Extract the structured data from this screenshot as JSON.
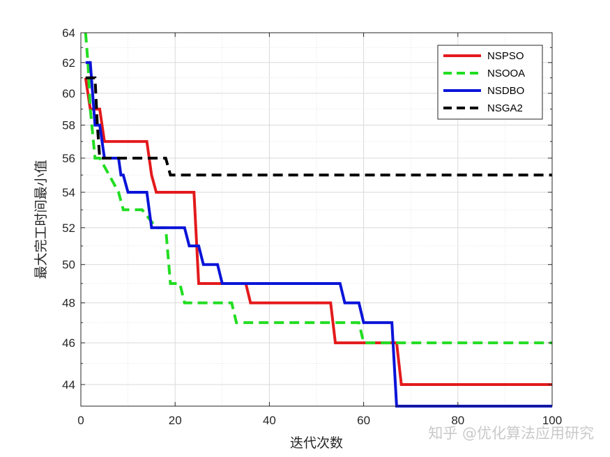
{
  "chart_data": {
    "type": "line",
    "title": "",
    "xlabel": "迭代次数",
    "ylabel": "最大完工时间最小值",
    "xlim": [
      0,
      100
    ],
    "ylim": [
      43,
      64
    ],
    "yscale": "log",
    "grid": true,
    "minor_grid": true,
    "legend_position": "top-right",
    "xticks": [
      0,
      20,
      40,
      60,
      80,
      100
    ],
    "yticks": [
      44,
      46,
      48,
      50,
      52,
      54,
      56,
      58,
      60,
      62,
      64
    ],
    "series": [
      {
        "name": "NSPSO",
        "color": "#e31a1c",
        "style": "solid",
        "points": [
          [
            1,
            61
          ],
          [
            2,
            59
          ],
          [
            3,
            59
          ],
          [
            4,
            59
          ],
          [
            5,
            57
          ],
          [
            14,
            57
          ],
          [
            15,
            55
          ],
          [
            16,
            54
          ],
          [
            24,
            54
          ],
          [
            25,
            49
          ],
          [
            35,
            49
          ],
          [
            36,
            48
          ],
          [
            53,
            48
          ],
          [
            54,
            46
          ],
          [
            67,
            46
          ],
          [
            68,
            44
          ],
          [
            100,
            44
          ]
        ]
      },
      {
        "name": "NSOOA",
        "color": "#22dd22",
        "style": "dashed",
        "points": [
          [
            1,
            64
          ],
          [
            1.5,
            62
          ],
          [
            2,
            59
          ],
          [
            3,
            56
          ],
          [
            4,
            56
          ],
          [
            6,
            55
          ],
          [
            8,
            54
          ],
          [
            9,
            53
          ],
          [
            13,
            53
          ],
          [
            16,
            52
          ],
          [
            18,
            52
          ],
          [
            19,
            49
          ],
          [
            21,
            49
          ],
          [
            22,
            48
          ],
          [
            32,
            48
          ],
          [
            33,
            47
          ],
          [
            59,
            47
          ],
          [
            60,
            46
          ],
          [
            100,
            46
          ]
        ]
      },
      {
        "name": "NSDBO",
        "color": "#0a14d8",
        "style": "solid",
        "points": [
          [
            1,
            62
          ],
          [
            2,
            62
          ],
          [
            3,
            58
          ],
          [
            4,
            58
          ],
          [
            5,
            56
          ],
          [
            8,
            56
          ],
          [
            8.5,
            55
          ],
          [
            9,
            55
          ],
          [
            10,
            54
          ],
          [
            14,
            54
          ],
          [
            15,
            52
          ],
          [
            22,
            52
          ],
          [
            23,
            51
          ],
          [
            25,
            51
          ],
          [
            26,
            50
          ],
          [
            29,
            50
          ],
          [
            30,
            49
          ],
          [
            55,
            49
          ],
          [
            56,
            48
          ],
          [
            59,
            48
          ],
          [
            60,
            47
          ],
          [
            66,
            47
          ],
          [
            67,
            43
          ],
          [
            100,
            43
          ]
        ]
      },
      {
        "name": "NSGA2",
        "color": "#000000",
        "style": "dashed",
        "points": [
          [
            1,
            61
          ],
          [
            3,
            61
          ],
          [
            3.5,
            58
          ],
          [
            4,
            56
          ],
          [
            18,
            56
          ],
          [
            19,
            55
          ],
          [
            100,
            55
          ]
        ]
      }
    ]
  },
  "watermark": "知乎 @优化算法应用研究"
}
